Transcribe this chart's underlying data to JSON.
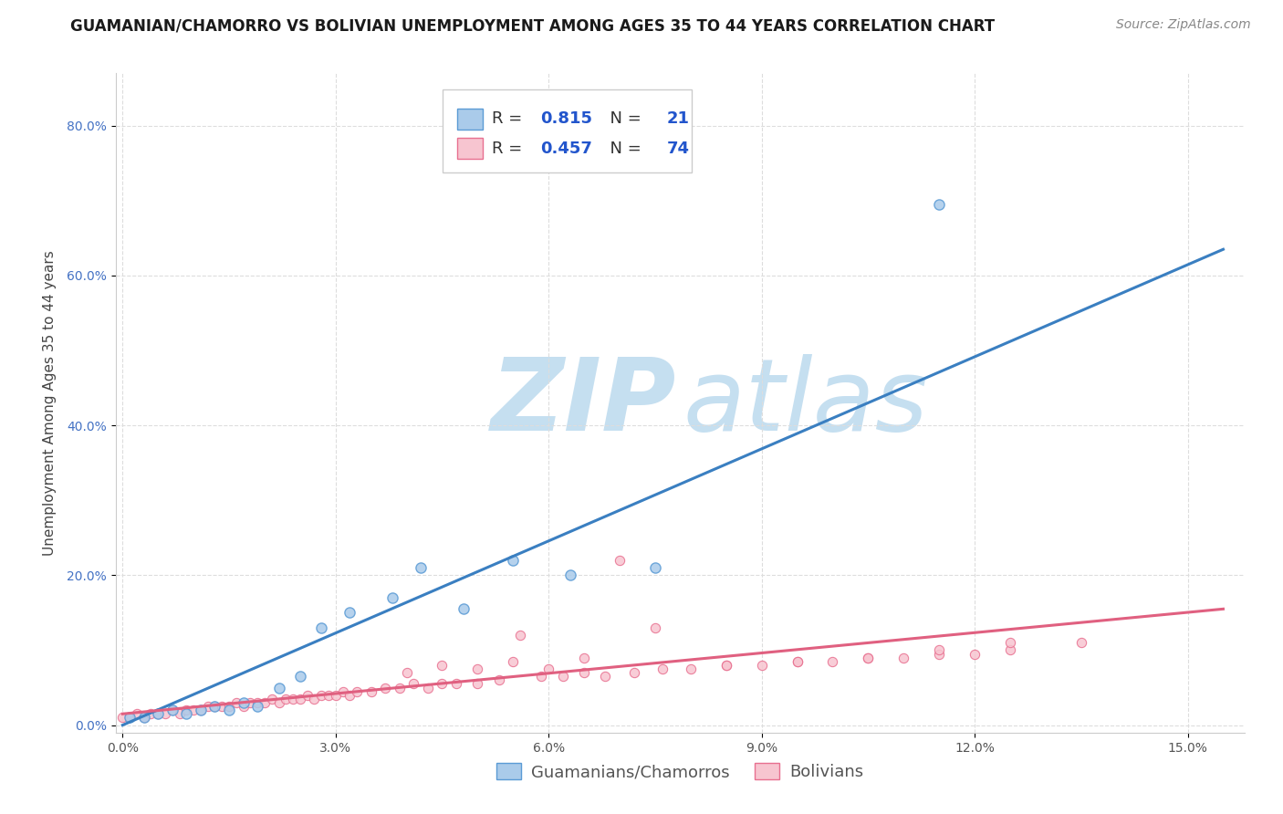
{
  "title": "GUAMANIAN/CHAMORRO VS BOLIVIAN UNEMPLOYMENT AMONG AGES 35 TO 44 YEARS CORRELATION CHART",
  "source": "Source: ZipAtlas.com",
  "ylabel": "Unemployment Among Ages 35 to 44 years",
  "background_color": "#ffffff",
  "blue_R": "0.815",
  "blue_N": "21",
  "pink_R": "0.457",
  "pink_N": "74",
  "blue_fill": "#aacbea",
  "blue_edge": "#5b9bd5",
  "blue_line": "#3a7fc1",
  "pink_fill": "#f7c5d0",
  "pink_edge": "#e87090",
  "pink_line": "#e06080",
  "label_color": "#2255cc",
  "xlim_lo": -0.001,
  "xlim_hi": 0.158,
  "ylim_lo": -0.01,
  "ylim_hi": 0.87,
  "xtick_vals": [
    0.0,
    0.03,
    0.06,
    0.09,
    0.12,
    0.15
  ],
  "xtick_labels": [
    "0.0%",
    "3.0%",
    "6.0%",
    "9.0%",
    "12.0%",
    "15.0%"
  ],
  "ytick_vals": [
    0.0,
    0.2,
    0.4,
    0.6,
    0.8
  ],
  "ytick_labels": [
    "0.0%",
    "20.0%",
    "40.0%",
    "60.0%",
    "80.0%"
  ],
  "blue_x": [
    0.001,
    0.003,
    0.005,
    0.007,
    0.009,
    0.011,
    0.013,
    0.015,
    0.017,
    0.019,
    0.022,
    0.025,
    0.028,
    0.032,
    0.038,
    0.042,
    0.048,
    0.055,
    0.063,
    0.075,
    0.115
  ],
  "blue_y": [
    0.01,
    0.01,
    0.015,
    0.02,
    0.015,
    0.02,
    0.025,
    0.02,
    0.03,
    0.025,
    0.05,
    0.065,
    0.13,
    0.15,
    0.17,
    0.21,
    0.155,
    0.22,
    0.2,
    0.21,
    0.695
  ],
  "pink_x": [
    0.0,
    0.001,
    0.002,
    0.003,
    0.004,
    0.005,
    0.006,
    0.007,
    0.008,
    0.009,
    0.01,
    0.011,
    0.012,
    0.013,
    0.014,
    0.015,
    0.016,
    0.017,
    0.018,
    0.019,
    0.02,
    0.021,
    0.022,
    0.023,
    0.024,
    0.025,
    0.026,
    0.027,
    0.028,
    0.029,
    0.03,
    0.031,
    0.032,
    0.033,
    0.035,
    0.037,
    0.039,
    0.041,
    0.043,
    0.045,
    0.047,
    0.05,
    0.053,
    0.056,
    0.059,
    0.062,
    0.065,
    0.068,
    0.072,
    0.076,
    0.08,
    0.085,
    0.09,
    0.095,
    0.1,
    0.105,
    0.11,
    0.115,
    0.12,
    0.125,
    0.045,
    0.055,
    0.065,
    0.075,
    0.085,
    0.095,
    0.105,
    0.115,
    0.125,
    0.135,
    0.04,
    0.05,
    0.06,
    0.07
  ],
  "pink_y": [
    0.01,
    0.01,
    0.015,
    0.01,
    0.015,
    0.015,
    0.015,
    0.02,
    0.015,
    0.02,
    0.02,
    0.02,
    0.025,
    0.025,
    0.025,
    0.025,
    0.03,
    0.025,
    0.03,
    0.03,
    0.03,
    0.035,
    0.03,
    0.035,
    0.035,
    0.035,
    0.04,
    0.035,
    0.04,
    0.04,
    0.04,
    0.045,
    0.04,
    0.045,
    0.045,
    0.05,
    0.05,
    0.055,
    0.05,
    0.055,
    0.055,
    0.055,
    0.06,
    0.12,
    0.065,
    0.065,
    0.07,
    0.065,
    0.07,
    0.075,
    0.075,
    0.08,
    0.08,
    0.085,
    0.085,
    0.09,
    0.09,
    0.095,
    0.095,
    0.1,
    0.08,
    0.085,
    0.09,
    0.13,
    0.08,
    0.085,
    0.09,
    0.1,
    0.11,
    0.11,
    0.07,
    0.075,
    0.075,
    0.22
  ],
  "blue_trend_x0": 0.0,
  "blue_trend_x1": 0.155,
  "blue_trend_y0": 0.0,
  "blue_trend_y1": 0.635,
  "pink_trend_x0": 0.0,
  "pink_trend_x1": 0.155,
  "pink_trend_y0": 0.015,
  "pink_trend_y1": 0.155,
  "grid_color": "#dddddd",
  "title_fontsize": 12,
  "tick_fontsize": 10,
  "legend_fontsize": 13,
  "ylabel_fontsize": 11,
  "source_fontsize": 10,
  "watermark_color": "#c5dff0",
  "legend_text_dark": "#333333",
  "ytick_color": "#4472c4",
  "xtick_color": "#555555"
}
